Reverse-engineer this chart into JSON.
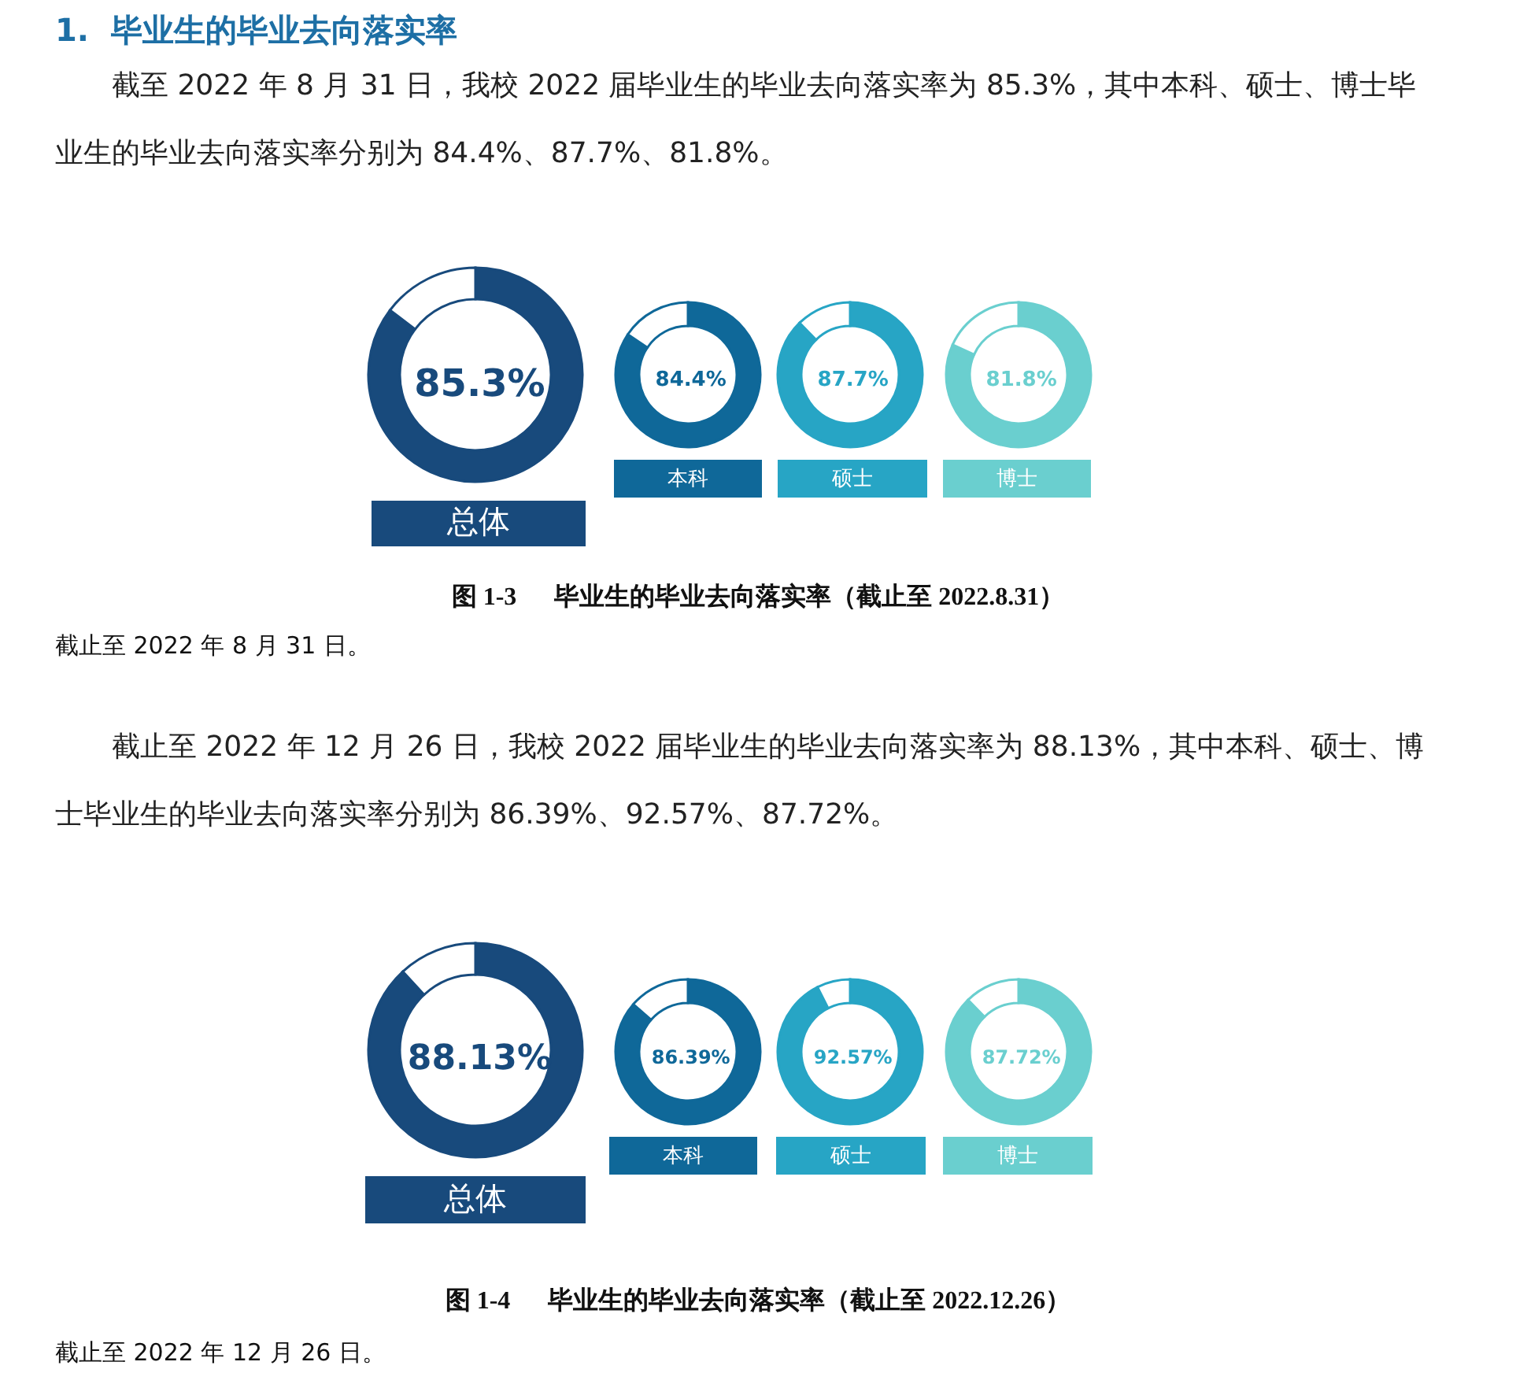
{
  "chart_data": [
    {
      "type": "donut",
      "title": "总体",
      "categories": [
        null,
        null
      ],
      "values": [
        85.3,
        14.7
      ],
      "colors": [
        "#184a7c",
        "#ffffff"
      ],
      "value_labels": [
        "85.3%",
        null
      ],
      "annotations": [
        "1.  毕业生的毕业去向落实率",
        "截至 2022 年 8 月 31 日，我校 2022 届毕业生的毕业去向落实率为 85.3%，其中本科、硕士、博士毕业生的毕业去向落实率分别为 84.4%、87.7%、81.8%。"
      ]
    },
    {
      "type": "donut",
      "title": "本科",
      "categories": [
        null,
        null
      ],
      "values": [
        84.4,
        15.6
      ],
      "colors": [
        "#0f6899",
        "#ffffff"
      ],
      "value_labels": [
        "84.4%",
        null
      ]
    },
    {
      "type": "donut",
      "title": "硕士",
      "categories": [
        null,
        null
      ],
      "values": [
        87.7,
        12.3
      ],
      "colors": [
        "#27a5c5",
        "#ffffff"
      ],
      "value_labels": [
        "87.7%",
        null
      ]
    },
    {
      "type": "donut",
      "title": "博士",
      "categories": [
        null,
        null
      ],
      "values": [
        81.8,
        18.2
      ],
      "colors": [
        "#6acfcf",
        "#ffffff"
      ],
      "value_labels": [
        "81.8%",
        null
      ],
      "annotations": [
        "图 1-3      毕业生的毕业去向落实率（截止至 2022.8.31）",
        "截止至 2022 年 8 月 31 日。"
      ]
    },
    {
      "type": "donut",
      "title": "总体",
      "categories": [
        null,
        null
      ],
      "values": [
        88.13,
        11.87
      ],
      "colors": [
        "#184a7c",
        "#ffffff"
      ],
      "value_labels": [
        "88.13%",
        null
      ],
      "annotations": [
        "截止至 2022 年 12 月 26 日，我校 2022 届毕业生的毕业去向落实率为 88.13%，其中本科、硕士、博士毕业生的毕业去向落实率分别为 86.39%、92.57%、87.72%。"
      ]
    },
    {
      "type": "donut",
      "title": "本科",
      "categories": [
        null,
        null
      ],
      "values": [
        86.39,
        13.61
      ],
      "colors": [
        "#0f6899",
        "#ffffff"
      ],
      "value_labels": [
        "86.39%",
        null
      ]
    },
    {
      "type": "donut",
      "title": "硕士",
      "categories": [
        null,
        null
      ],
      "values": [
        92.57,
        7.43
      ],
      "colors": [
        "#27a5c5",
        "#ffffff"
      ],
      "value_labels": [
        "92.57%",
        null
      ]
    },
    {
      "type": "donut",
      "title": "博士",
      "categories": [
        null,
        null
      ],
      "values": [
        87.72,
        12.28
      ],
      "colors": [
        "#6acfcf",
        "#ffffff"
      ],
      "value_labels": [
        "87.72%",
        null
      ],
      "annotations": [
        "图 1-4      毕业生的毕业去向落实率（截止至 2022.12.26）",
        "截止至 2022 年 12 月 26 日。"
      ]
    }
  ]
}
